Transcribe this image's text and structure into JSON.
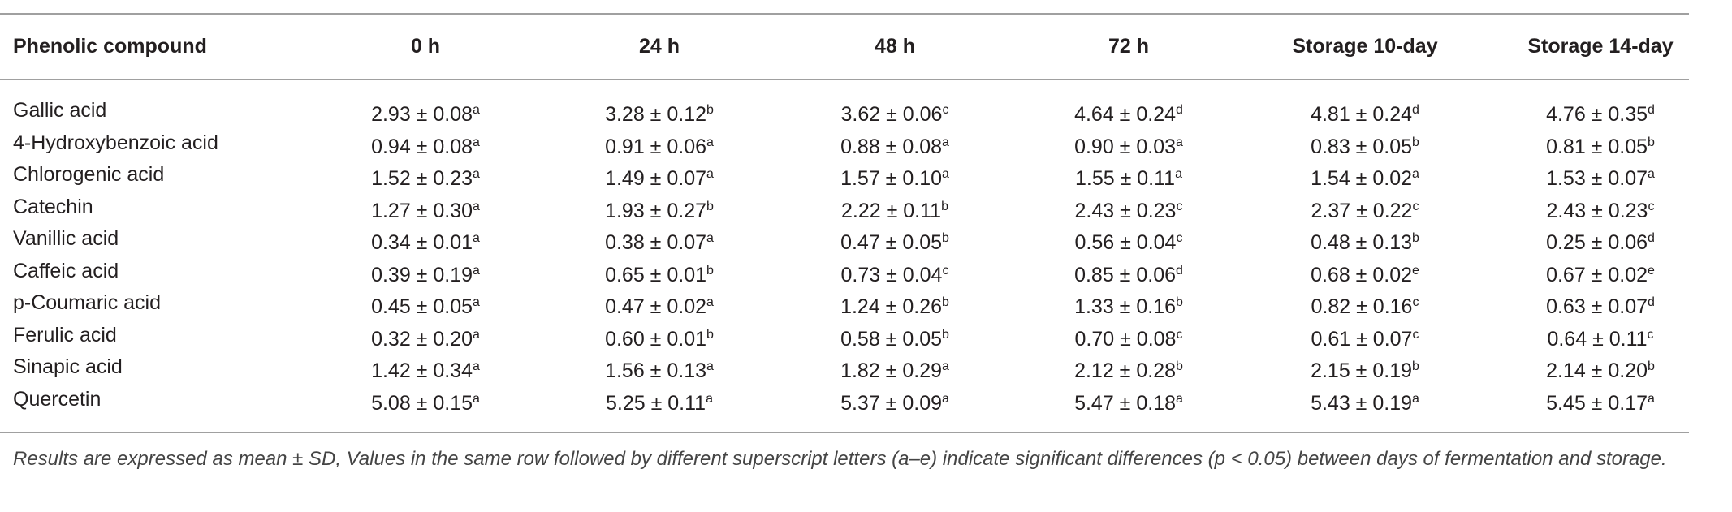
{
  "table": {
    "header": [
      "Phenolic compound",
      "0 h",
      "24 h",
      "48 h",
      "72 h",
      "Storage 10-day",
      "Storage 14-day"
    ],
    "rows": [
      [
        "Gallic acid",
        {
          "text": "2.93 ± 0.08",
          "sup": "a"
        },
        {
          "text": "3.28 ± 0.12",
          "sup": "b"
        },
        {
          "text": "3.62 ± 0.06",
          "sup": "c"
        },
        {
          "text": "4.64 ± 0.24",
          "sup": "d"
        },
        {
          "text": "4.81 ± 0.24",
          "sup": "d"
        },
        {
          "text": "4.76 ± 0.35",
          "sup": "d"
        }
      ],
      [
        "4-Hydroxybenzoic acid",
        {
          "text": "0.94 ± 0.08",
          "sup": "a"
        },
        {
          "text": "0.91 ± 0.06",
          "sup": "a"
        },
        {
          "text": "0.88 ± 0.08",
          "sup": "a"
        },
        {
          "text": "0.90 ± 0.03",
          "sup": "a"
        },
        {
          "text": "0.83 ± 0.05",
          "sup": "b"
        },
        {
          "text": "0.81 ± 0.05",
          "sup": "b"
        }
      ],
      [
        "Chlorogenic acid",
        {
          "text": "1.52 ± 0.23",
          "sup": "a"
        },
        {
          "text": "1.49 ± 0.07",
          "sup": "a"
        },
        {
          "text": "1.57 ± 0.10",
          "sup": "a"
        },
        {
          "text": "1.55 ± 0.11",
          "sup": "a"
        },
        {
          "text": "1.54 ± 0.02",
          "sup": "a"
        },
        {
          "text": "1.53 ± 0.07",
          "sup": "a"
        }
      ],
      [
        "Catechin",
        {
          "text": "1.27 ± 0.30",
          "sup": "a"
        },
        {
          "text": "1.93 ± 0.27",
          "sup": "b"
        },
        {
          "text": "2.22 ± 0.11",
          "sup": "b"
        },
        {
          "text": "2.43 ± 0.23",
          "sup": "c"
        },
        {
          "text": "2.37 ± 0.22",
          "sup": "c"
        },
        {
          "text": "2.43 ± 0.23",
          "sup": "c"
        }
      ],
      [
        "Vanillic acid",
        {
          "text": "0.34 ± 0.01",
          "sup": "a"
        },
        {
          "text": "0.38 ± 0.07",
          "sup": "a"
        },
        {
          "text": "0.47 ± 0.05",
          "sup": "b"
        },
        {
          "text": "0.56 ± 0.04",
          "sup": "c"
        },
        {
          "text": "0.48 ± 0.13",
          "sup": "b"
        },
        {
          "text": "0.25 ± 0.06",
          "sup": "d"
        }
      ],
      [
        "Caffeic acid",
        {
          "text": "0.39 ± 0.19",
          "sup": "a"
        },
        {
          "text": "0.65 ± 0.01",
          "sup": "b"
        },
        {
          "text": "0.73 ± 0.04",
          "sup": "c"
        },
        {
          "text": "0.85 ± 0.06",
          "sup": "d"
        },
        {
          "text": "0.68 ± 0.02",
          "sup": "e"
        },
        {
          "text": "0.67 ± 0.02",
          "sup": "e"
        }
      ],
      [
        "p-Coumaric acid",
        {
          "text": "0.45 ± 0.05",
          "sup": "a"
        },
        {
          "text": "0.47 ± 0.02",
          "sup": "a"
        },
        {
          "text": "1.24 ± 0.26",
          "sup": "b"
        },
        {
          "text": "1.33 ± 0.16",
          "sup": "b"
        },
        {
          "text": "0.82 ± 0.16",
          "sup": "c"
        },
        {
          "text": "0.63 ± 0.07",
          "sup": "d"
        }
      ],
      [
        "Ferulic acid",
        {
          "text": "0.32 ± 0.20",
          "sup": "a"
        },
        {
          "text": "0.60 ± 0.01",
          "sup": "b"
        },
        {
          "text": "0.58 ± 0.05",
          "sup": "b"
        },
        {
          "text": "0.70 ± 0.08",
          "sup": "c"
        },
        {
          "text": "0.61 ± 0.07",
          "sup": "c"
        },
        {
          "text": "0.64 ± 0.11",
          "sup": "c"
        }
      ],
      [
        "Sinapic acid",
        {
          "text": "1.42 ± 0.34",
          "sup": "a"
        },
        {
          "text": "1.56 ± 0.13",
          "sup": "a"
        },
        {
          "text": "1.82 ± 0.29",
          "sup": "a"
        },
        {
          "text": "2.12 ± 0.28",
          "sup": "b"
        },
        {
          "text": "2.15 ± 0.19",
          "sup": "b"
        },
        {
          "text": "2.14 ± 0.20",
          "sup": "b"
        }
      ],
      [
        "Quercetin",
        {
          "text": "5.08 ± 0.15",
          "sup": "a"
        },
        {
          "text": "5.25 ± 0.11",
          "sup": "a"
        },
        {
          "text": "5.37 ± 0.09",
          "sup": "a"
        },
        {
          "text": "5.47 ± 0.18",
          "sup": "a"
        },
        {
          "text": "5.43 ± 0.19",
          "sup": "a"
        },
        {
          "text": "5.45 ± 0.17",
          "sup": "a"
        }
      ]
    ]
  },
  "footnote": "Results are expressed as mean ± SD, Values in the same row followed by different superscript letters (a–e) indicate significant differences (p < 0.05) between days of fermentation and storage."
}
